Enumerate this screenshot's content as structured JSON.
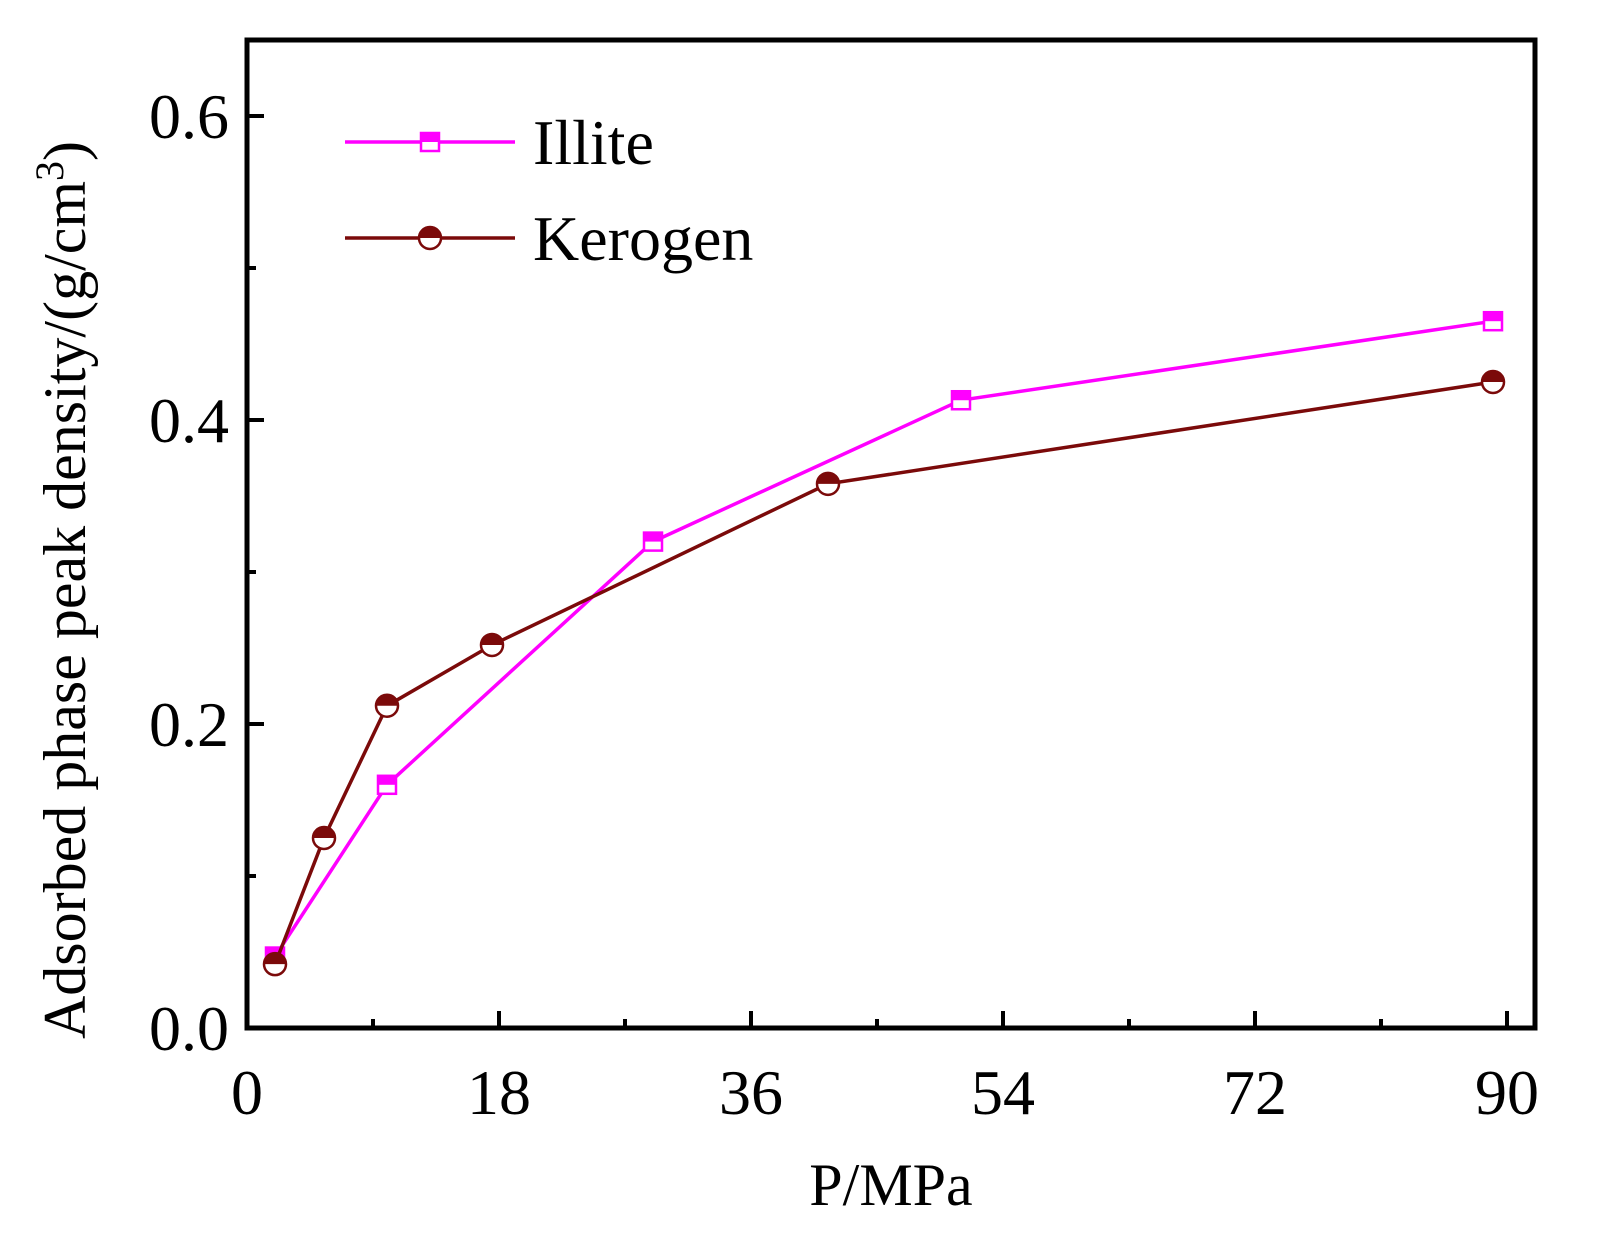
{
  "colors": {
    "illite": "#ff00ff",
    "kerogen": "#7b0a0a",
    "axis": "#000000",
    "background": "#ffffff"
  },
  "chart_data": {
    "type": "line",
    "title": "",
    "xlabel": "P/MPa",
    "ylabel": "Adsorbed phase peak density/(g/cm",
    "ylabel_superscript": "3",
    "ylabel_close": ")",
    "xlim": [
      0,
      92
    ],
    "ylim": [
      0,
      0.65
    ],
    "xticks": [
      0,
      18,
      36,
      54,
      72,
      90
    ],
    "xtick_labels": [
      "0",
      "18",
      "36",
      "54",
      "72",
      "90"
    ],
    "xminor_ticks": [
      9,
      27,
      45,
      63,
      81
    ],
    "yticks": [
      0.0,
      0.2,
      0.4,
      0.6
    ],
    "ytick_labels": [
      "0.0",
      "0.2",
      "0.4",
      "0.6"
    ],
    "yminor_ticks": [
      0.1,
      0.3,
      0.5
    ],
    "grid": false,
    "legend_position": "top-left",
    "series": [
      {
        "name": "Illite",
        "marker": "half-filled-square",
        "color_key": "illite",
        "x": [
          2,
          10,
          29,
          51,
          89
        ],
        "y": [
          0.047,
          0.16,
          0.32,
          0.413,
          0.465
        ]
      },
      {
        "name": "Kerogen",
        "marker": "half-filled-circle",
        "color_key": "kerogen",
        "x": [
          2,
          5.5,
          10,
          17.5,
          41.5,
          89
        ],
        "y": [
          0.042,
          0.125,
          0.212,
          0.252,
          0.358,
          0.425
        ]
      }
    ]
  }
}
